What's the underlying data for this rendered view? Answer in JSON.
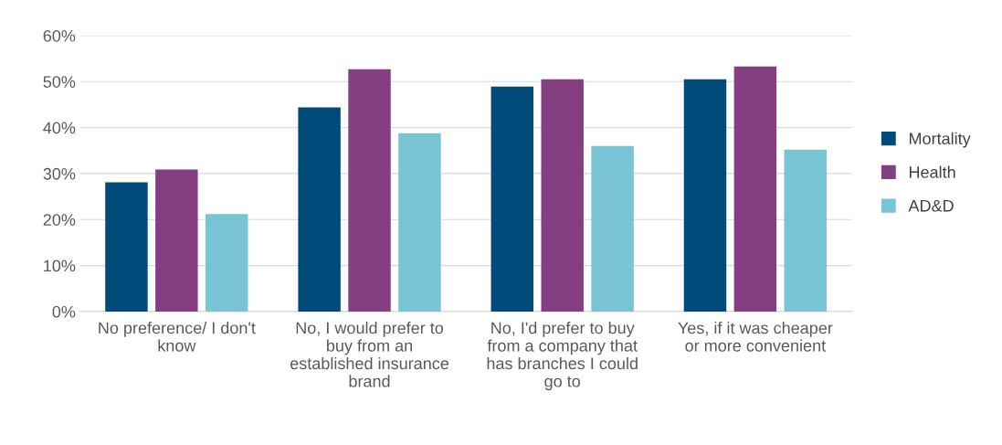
{
  "chart_data": {
    "type": "bar",
    "categories": [
      "No preference/ I don't know",
      "No, I would prefer to buy from an established insurance brand",
      "No, I'd prefer to buy from a company that has branches I could go to",
      "Yes, if it was cheaper or more convenient"
    ],
    "series": [
      {
        "name": "Mortality",
        "color": "#004b7a",
        "values": [
          28.1,
          44.4,
          48.9,
          50.5
        ]
      },
      {
        "name": "Health",
        "color": "#833f82",
        "values": [
          30.9,
          52.7,
          50.5,
          53.3
        ]
      },
      {
        "name": "AD&D",
        "color": "#78c4d4",
        "values": [
          21.2,
          38.8,
          36.0,
          35.2
        ]
      }
    ],
    "ylim": [
      0,
      60
    ],
    "yticks": [
      {
        "value": 0,
        "label": "0%"
      },
      {
        "value": 10,
        "label": "10%"
      },
      {
        "value": 20,
        "label": "20%"
      },
      {
        "value": 30,
        "label": "30%"
      },
      {
        "value": 40,
        "label": "40%"
      },
      {
        "value": 50,
        "label": "50%"
      },
      {
        "value": 60,
        "label": "60%"
      }
    ],
    "grid": "y",
    "legend": "right"
  }
}
